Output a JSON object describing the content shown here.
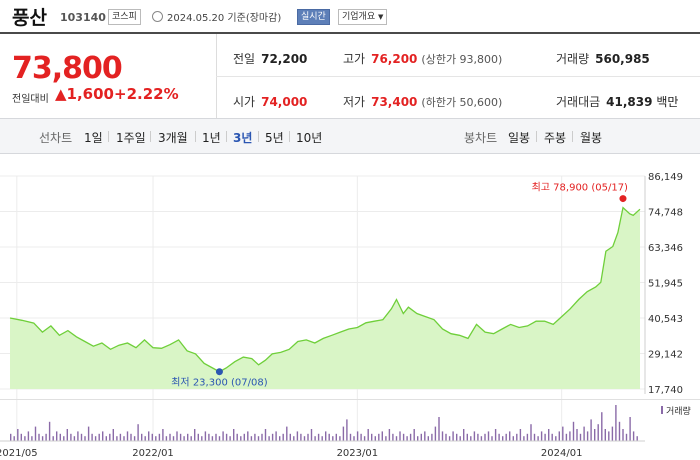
{
  "stock": {
    "name": "풍산",
    "code": "103140",
    "market": "코스피",
    "date": "2024.05.20 기준(장마감)",
    "realtime": "실시간",
    "company_info": "기업개요"
  },
  "price": {
    "current": "73,800",
    "change_label": "전일대비",
    "change_symbol": "▲",
    "change_value": "1,600",
    "change_pct": "+2.22%"
  },
  "metrics": {
    "prev_close": {
      "label": "전일",
      "value": "72,200"
    },
    "high": {
      "label": "고가",
      "value": "76,200",
      "sub": "(상한가 93,800)"
    },
    "volume": {
      "label": "거래량",
      "value": "560,985"
    },
    "open": {
      "label": "시가",
      "value": "74,000"
    },
    "low": {
      "label": "저가",
      "value": "73,400",
      "sub": "(하한가 50,600)"
    },
    "trade_value": {
      "label": "거래대금",
      "value": "41,839",
      "unit": "백만"
    }
  },
  "periods": {
    "line_label": "선차트",
    "line_items": [
      "1일",
      "1주일",
      "3개월",
      "1년",
      "3년",
      "5년",
      "10년"
    ],
    "active": "3년",
    "candle_label": "봉차트",
    "candle_items": [
      "일봉",
      "주봉",
      "월봉"
    ]
  },
  "colors": {
    "up": "#e32222",
    "accent": "#2b56b2",
    "line": "#6fcf3a",
    "fill": "#d9f5c6",
    "volume": "#8a6aa8"
  },
  "chart_data": {
    "type": "area",
    "y_ticks": [
      "86,149",
      "74,748",
      "63,346",
      "51,945",
      "40,543",
      "29,142",
      "17,740"
    ],
    "ylim": [
      17740,
      86149
    ],
    "x_ticks": [
      "2021/05",
      "2022/01",
      "2023/01",
      "2024/01"
    ],
    "x_tick_times": [
      0,
      8,
      20,
      32
    ],
    "xlim": [
      -0.4,
      36.6
    ],
    "series": [
      {
        "values": [
          [
            -0.4,
            40543
          ],
          [
            0.3,
            39800
          ],
          [
            1,
            38900
          ],
          [
            1.5,
            36000
          ],
          [
            2,
            38000
          ],
          [
            2.5,
            35000
          ],
          [
            3,
            36500
          ],
          [
            3.5,
            34500
          ],
          [
            4,
            33000
          ],
          [
            4.5,
            31500
          ],
          [
            5,
            32500
          ],
          [
            5.5,
            30500
          ],
          [
            6,
            31800
          ],
          [
            6.5,
            32500
          ],
          [
            7,
            31000
          ],
          [
            7.5,
            33500
          ],
          [
            8,
            31000
          ],
          [
            8.5,
            30800
          ],
          [
            9,
            32000
          ],
          [
            9.5,
            33500
          ],
          [
            10,
            30000
          ],
          [
            10.5,
            29000
          ],
          [
            11,
            26000
          ],
          [
            11.5,
            24500
          ],
          [
            11.9,
            23300
          ],
          [
            12.3,
            24500
          ],
          [
            12.8,
            26500
          ],
          [
            13.3,
            28000
          ],
          [
            13.8,
            27500
          ],
          [
            14.2,
            25500
          ],
          [
            14.6,
            27000
          ],
          [
            15,
            29000
          ],
          [
            15.5,
            29500
          ],
          [
            16,
            30500
          ],
          [
            16.5,
            33000
          ],
          [
            17,
            33500
          ],
          [
            17.5,
            32500
          ],
          [
            18,
            34000
          ],
          [
            18.5,
            35000
          ],
          [
            19,
            36000
          ],
          [
            19.5,
            37000
          ],
          [
            20,
            37500
          ],
          [
            20.5,
            39000
          ],
          [
            21,
            39500
          ],
          [
            21.5,
            40000
          ],
          [
            22,
            43500
          ],
          [
            22.3,
            46500
          ],
          [
            22.7,
            42000
          ],
          [
            23,
            44000
          ],
          [
            23.5,
            42000
          ],
          [
            24,
            41000
          ],
          [
            24.5,
            40000
          ],
          [
            25,
            37000
          ],
          [
            25.5,
            35500
          ],
          [
            26,
            35000
          ],
          [
            26.5,
            34000
          ],
          [
            27,
            38500
          ],
          [
            27.5,
            36000
          ],
          [
            28,
            35500
          ],
          [
            28.5,
            37000
          ],
          [
            29,
            38500
          ],
          [
            29.5,
            37500
          ],
          [
            30,
            38000
          ],
          [
            30.5,
            39500
          ],
          [
            31,
            39500
          ],
          [
            31.5,
            38500
          ],
          [
            32,
            41000
          ],
          [
            32.5,
            43500
          ],
          [
            33,
            46500
          ],
          [
            33.5,
            49000
          ],
          [
            34,
            50500
          ],
          [
            34.3,
            52000
          ],
          [
            34.6,
            62000
          ],
          [
            35,
            63500
          ],
          [
            35.3,
            68000
          ],
          [
            35.6,
            76000
          ],
          [
            36,
            74000
          ],
          [
            36.2,
            73500
          ],
          [
            36.6,
            75500
          ]
        ]
      }
    ],
    "volume": [
      3,
      2,
      5,
      3,
      2,
      4,
      2,
      6,
      3,
      2,
      3,
      8,
      2,
      4,
      3,
      2,
      5,
      3,
      2,
      4,
      3,
      2,
      6,
      3,
      2,
      3,
      4,
      2,
      3,
      5,
      2,
      3,
      2,
      4,
      3,
      2,
      7,
      3,
      2,
      4,
      3,
      2,
      3,
      5,
      2,
      3,
      2,
      4,
      3,
      2,
      3,
      2,
      5,
      3,
      2,
      4,
      3,
      2,
      3,
      2,
      4,
      3,
      2,
      5,
      3,
      2,
      3,
      4,
      2,
      3,
      2,
      3,
      5,
      2,
      3,
      4,
      2,
      3,
      6,
      3,
      2,
      4,
      3,
      2,
      3,
      5,
      2,
      3,
      2,
      4,
      3,
      2,
      3,
      2,
      6,
      9,
      3,
      2,
      4,
      3,
      2,
      5,
      3,
      2,
      3,
      4,
      2,
      5,
      3,
      2,
      4,
      3,
      2,
      3,
      5,
      2,
      3,
      4,
      2,
      3,
      6,
      10,
      4,
      3,
      2,
      4,
      3,
      2,
      5,
      3,
      2,
      4,
      3,
      2,
      3,
      4,
      2,
      5,
      3,
      2,
      3,
      4,
      2,
      3,
      5,
      2,
      3,
      7,
      3,
      2,
      4,
      3,
      5,
      3,
      2,
      4,
      6,
      3,
      4,
      8,
      5,
      3,
      6,
      4,
      9,
      5,
      7,
      12,
      5,
      4,
      6,
      15,
      8,
      5,
      3,
      10,
      4,
      2
    ],
    "high_label": "최고 78,900 (05/17)",
    "high_value": 78900,
    "high_time": 35.6,
    "low_label": "최저 23,300 (07/08)",
    "low_value": 23300,
    "low_time": 11.9,
    "volume_label": "거래량"
  }
}
